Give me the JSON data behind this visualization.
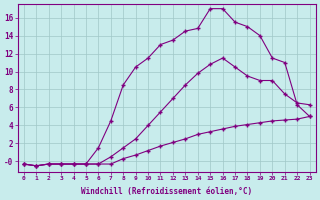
{
  "xlabel": "Windchill (Refroidissement éolien,°C)",
  "bg_color": "#c8ecec",
  "line_color": "#800080",
  "grid_color": "#a0c8c8",
  "tick_color": "#800080",
  "xlim": [
    -0.5,
    23.5
  ],
  "ylim": [
    -1.2,
    17.5
  ],
  "xticks": [
    0,
    1,
    2,
    3,
    4,
    5,
    6,
    7,
    8,
    9,
    10,
    11,
    12,
    13,
    14,
    15,
    16,
    17,
    18,
    19,
    20,
    21,
    22,
    23
  ],
  "yticks": [
    0,
    2,
    4,
    6,
    8,
    10,
    12,
    14,
    16
  ],
  "ytick_labels": [
    "-0",
    "2",
    "4",
    "6",
    "8",
    "10",
    "12",
    "14",
    "16"
  ],
  "line1_x": [
    0,
    1,
    2,
    3,
    4,
    5,
    6,
    7,
    8,
    9,
    10,
    11,
    12,
    13,
    14,
    15,
    16,
    17,
    18,
    19,
    20,
    21,
    22,
    23
  ],
  "line1_y": [
    -0.3,
    -0.5,
    -0.3,
    -0.3,
    -0.3,
    -0.3,
    -0.3,
    -0.3,
    0.3,
    0.7,
    1.2,
    1.7,
    2.1,
    2.5,
    3.0,
    3.3,
    3.6,
    3.9,
    4.1,
    4.3,
    4.5,
    4.6,
    4.7,
    5.0
  ],
  "line2_x": [
    0,
    1,
    2,
    3,
    4,
    5,
    6,
    7,
    8,
    9,
    10,
    11,
    12,
    13,
    14,
    15,
    16,
    17,
    18,
    19,
    20,
    21,
    22,
    23
  ],
  "line2_y": [
    -0.3,
    -0.5,
    -0.3,
    -0.3,
    -0.3,
    -0.3,
    -0.3,
    0.5,
    1.5,
    2.5,
    4.0,
    5.5,
    7.0,
    8.5,
    9.8,
    10.8,
    11.5,
    10.5,
    9.5,
    9.0,
    9.0,
    7.5,
    6.5,
    6.3
  ],
  "line3_x": [
    0,
    1,
    2,
    3,
    4,
    5,
    6,
    7,
    8,
    9,
    10,
    11,
    12,
    13,
    14,
    15,
    16,
    17,
    18,
    19,
    20,
    21,
    22,
    23
  ],
  "line3_y": [
    -0.3,
    -0.5,
    -0.3,
    -0.3,
    -0.3,
    -0.3,
    1.5,
    4.5,
    8.5,
    10.5,
    11.5,
    13.0,
    13.5,
    14.5,
    14.8,
    17.0,
    17.0,
    15.5,
    15.0,
    14.0,
    11.5,
    11.0,
    6.3,
    5.0
  ]
}
